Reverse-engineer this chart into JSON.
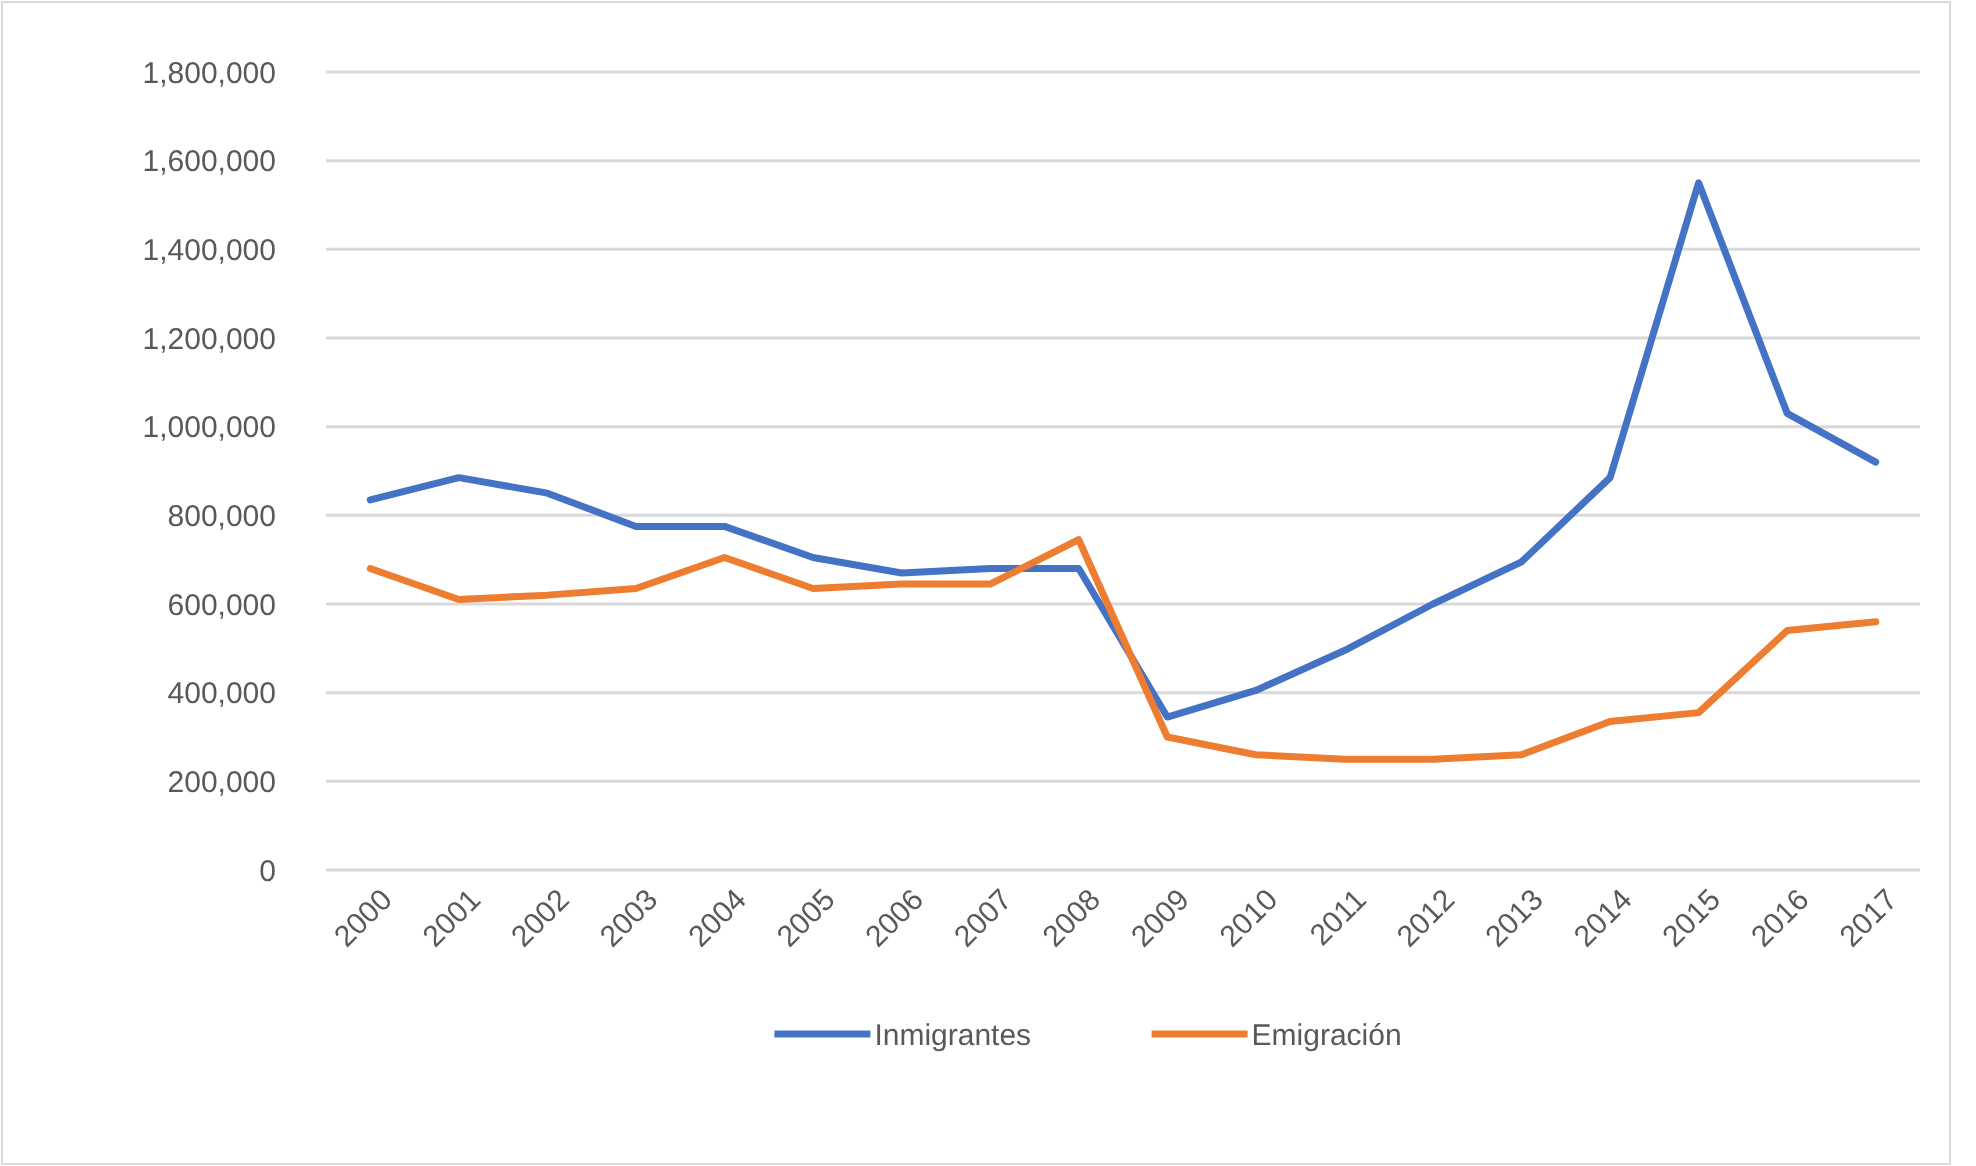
{
  "chart_data": {
    "type": "line",
    "categories": [
      "2000",
      "2001",
      "2002",
      "2003",
      "2004",
      "2005",
      "2006",
      "2007",
      "2008",
      "2009",
      "2010",
      "2011",
      "2012",
      "2013",
      "2014",
      "2015",
      "2016",
      "2017"
    ],
    "series": [
      {
        "name": "Inmigrantes",
        "color": "#4472c4",
        "values": [
          835000,
          885000,
          850000,
          775000,
          775000,
          705000,
          670000,
          680000,
          680000,
          345000,
          405000,
          495000,
          600000,
          695000,
          885000,
          1550000,
          1030000,
          920000
        ]
      },
      {
        "name": "Emigración",
        "color": "#ed7d31",
        "values": [
          680000,
          610000,
          620000,
          635000,
          705000,
          635000,
          645000,
          645000,
          745000,
          300000,
          260000,
          250000,
          250000,
          260000,
          335000,
          355000,
          540000,
          560000
        ]
      }
    ],
    "ylim": [
      0,
      1800000
    ],
    "yticks": [
      {
        "value": 0,
        "label": "0"
      },
      {
        "value": 200000,
        "label": "200,000"
      },
      {
        "value": 400000,
        "label": "400,000"
      },
      {
        "value": 600000,
        "label": "600,000"
      },
      {
        "value": 800000,
        "label": "800,000"
      },
      {
        "value": 1000000,
        "label": "1,000,000"
      },
      {
        "value": 1200000,
        "label": "1,200,000"
      },
      {
        "value": 1400000,
        "label": "1,400,000"
      },
      {
        "value": 1600000,
        "label": "1,600,000"
      },
      {
        "value": 1800000,
        "label": "1,800,000"
      }
    ],
    "grid": "y",
    "legend": "bottom",
    "marker": "none",
    "line_style": "solid"
  }
}
